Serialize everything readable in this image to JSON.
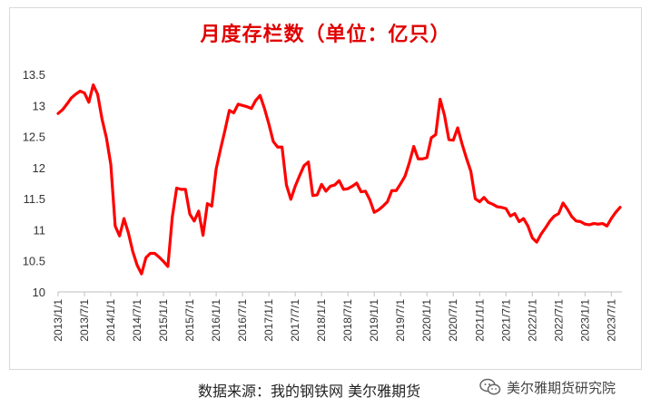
{
  "chart_data": {
    "type": "line",
    "title": "月度存栏数（单位：亿只）",
    "xlabel": "",
    "ylabel": "",
    "ylim": [
      10,
      13.5
    ],
    "yticks": [
      "10",
      "10.5",
      "11",
      "11.5",
      "12",
      "12.5",
      "13",
      "13.5"
    ],
    "xticks": [
      "2013/1/1",
      "2013/7/1",
      "2014/1/1",
      "2014/7/1",
      "2015/1/1",
      "2015/7/1",
      "2016/1/1",
      "2016/7/1",
      "2017/1/1",
      "2017/7/1",
      "2018/1/1",
      "2018/7/1",
      "2019/1/1",
      "2019/7/1",
      "2020/1/1",
      "2020/7/1",
      "2021/1/1",
      "2021/7/1",
      "2022/1/1",
      "2022/7/1",
      "2023/1/1",
      "2023/7/1"
    ],
    "grid": false,
    "legend": "none",
    "series": [
      {
        "color": "#ff0000",
        "values": [
          12.87,
          12.93,
          13.02,
          13.12,
          13.18,
          13.23,
          13.2,
          13.05,
          13.33,
          13.18,
          12.78,
          12.48,
          12.05,
          11.06,
          10.9,
          11.18,
          10.95,
          10.65,
          10.43,
          10.29,
          10.55,
          10.62,
          10.62,
          10.56,
          10.49,
          10.41,
          11.2,
          11.67,
          11.65,
          11.65,
          11.25,
          11.14,
          11.3,
          10.91,
          11.42,
          11.38,
          11.98,
          12.3,
          12.6,
          12.92,
          12.88,
          13.02,
          13.0,
          12.98,
          12.95,
          13.08,
          13.16,
          12.95,
          12.7,
          12.42,
          12.33,
          12.33,
          11.72,
          11.49,
          11.7,
          11.87,
          12.03,
          12.09,
          11.55,
          11.56,
          11.73,
          11.62,
          11.7,
          11.72,
          11.79,
          11.65,
          11.66,
          11.7,
          11.75,
          11.61,
          11.62,
          11.48,
          11.28,
          11.32,
          11.38,
          11.45,
          11.63,
          11.63,
          11.74,
          11.86,
          12.08,
          12.34,
          12.14,
          12.14,
          12.16,
          12.48,
          12.53,
          13.1,
          12.84,
          12.45,
          12.44,
          12.64,
          12.38,
          12.15,
          11.94,
          11.5,
          11.45,
          11.52,
          11.44,
          11.41,
          11.37,
          11.36,
          11.34,
          11.22,
          11.26,
          11.13,
          11.18,
          11.06,
          10.87,
          10.8,
          10.93,
          11.03,
          11.14,
          11.22,
          11.26,
          11.43,
          11.33,
          11.21,
          11.14,
          11.13,
          11.09,
          11.08,
          11.1,
          11.09,
          11.1,
          11.06,
          11.18,
          11.28,
          11.36
        ]
      }
    ]
  },
  "footer": {
    "source": "数据来源：我的钢铁网 美尔雅期货",
    "watermark": "美尔雅期货研究院"
  }
}
